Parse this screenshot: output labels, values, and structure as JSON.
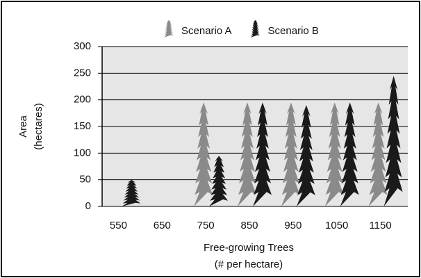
{
  "chart_data": {
    "type": "pictogram-bar",
    "categories": [
      "550",
      "650",
      "750",
      "850",
      "950",
      "1050",
      "1150"
    ],
    "series": [
      {
        "name": "Scenario A",
        "color": "#8a8a8a",
        "values": [
          0,
          0,
          195,
          195,
          195,
          195,
          195
        ]
      },
      {
        "name": "Scenario B",
        "color": "#1a1a1a",
        "values": [
          50,
          0,
          95,
          195,
          190,
          195,
          245
        ]
      }
    ],
    "ylim": [
      0,
      300
    ],
    "yticks": [
      0,
      50,
      100,
      150,
      200,
      250,
      300
    ],
    "grid": true,
    "x_label": [
      "Free-growing Trees",
      "(# per hectare)"
    ],
    "y_label": [
      "Area",
      "(hectares)"
    ],
    "legend": "top"
  }
}
